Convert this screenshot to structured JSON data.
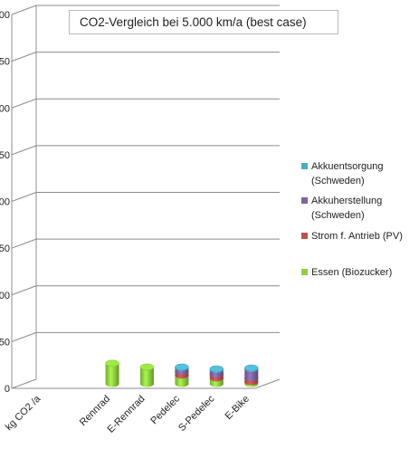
{
  "chart_data": {
    "type": "bar",
    "stacked": true,
    "three_d": true,
    "title": "CO2-Vergleich bei  5.000 km/a (best case)",
    "categories": [
      "kg CO2 /a",
      "",
      "Rennrad",
      "E-Rennrad",
      "Pedelec",
      "S-Pedelec",
      "E-Bike"
    ],
    "y_tick_labels": [
      "0",
      "50",
      "00",
      "50",
      "00",
      "50",
      "00",
      "50",
      "00"
    ],
    "ylim": [
      0,
      400
    ],
    "grid": true,
    "legend_position": "right",
    "series": [
      {
        "name": "Essen (Biozucker)",
        "color": "#8fd13d",
        "values": [
          0,
          0,
          22,
          18,
          9,
          6,
          2
        ]
      },
      {
        "name": "Strom f. Antrieb (PV)",
        "color": "#c0504d",
        "values": [
          0,
          0,
          0,
          0,
          4,
          4,
          4
        ]
      },
      {
        "name": "Akkuherstellung (Schweden)",
        "color": "#8064a2",
        "values": [
          0,
          0,
          0,
          0,
          4,
          5,
          10
        ]
      },
      {
        "name": "Akkuentsorgung (Schweden)",
        "color": "#4bacc6",
        "values": [
          0,
          0,
          0,
          0,
          1,
          1,
          1
        ]
      }
    ]
  },
  "legend_order": [
    "Akkuentsorgung (Schweden)",
    "Akkuherstellung (Schweden)",
    "Strom f. Antrieb (PV)",
    "Essen (Biozucker)"
  ]
}
